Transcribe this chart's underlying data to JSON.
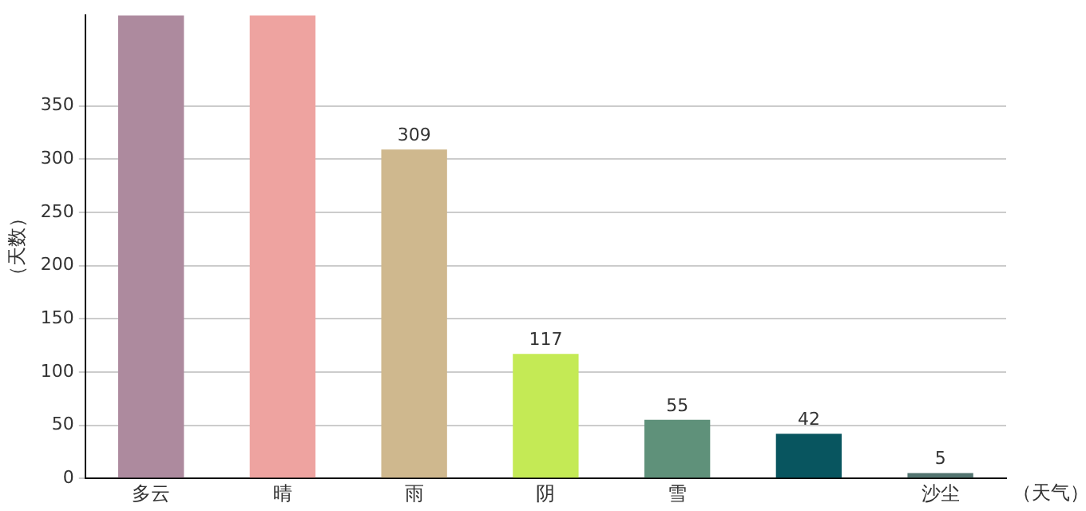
{
  "chart_data": {
    "type": "bar",
    "ylabel": "（天数）",
    "xlabel": "（天气）",
    "categories": [
      "多云",
      "晴",
      "雨",
      "阴",
      "雪",
      null,
      "沙尘"
    ],
    "values": [
      435,
      435,
      309,
      117,
      55,
      42,
      5
    ],
    "value_labels": [
      null,
      null,
      "309",
      "117",
      "55",
      "42",
      "5"
    ],
    "colors": [
      "#ad8a9e",
      "#eea3a0",
      "#cfb88e",
      "#c4ea55",
      "#5f917a",
      "#08555f",
      "#537470"
    ],
    "ylim": [
      0,
      435
    ],
    "yticks": [
      0,
      50,
      100,
      150,
      200,
      250,
      300,
      350
    ],
    "grid": "y",
    "legend": false
  }
}
